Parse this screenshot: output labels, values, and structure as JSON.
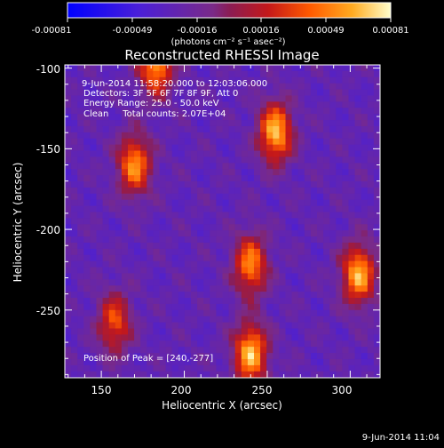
{
  "colorbar": {
    "tick_labels": [
      "-0.00081",
      "-0.00049",
      "-0.00016",
      "0.00016",
      "0.00049",
      "0.00081"
    ],
    "units_label": "(photons cm⁻² s⁻¹ asec⁻²)",
    "range": [
      -0.00081,
      0.00081
    ]
  },
  "chart_data": {
    "type": "heatmap",
    "title": "Reconstructed RHESSI Image",
    "xlabel": "Heliocentric X (arcsec)",
    "ylabel": "Heliocentric Y (arcsec)",
    "xlim": [
      128,
      318
    ],
    "ylim": [
      -292,
      -98
    ],
    "x_ticks": [
      150,
      200,
      250,
      300
    ],
    "y_ticks": [
      -100,
      -150,
      -200,
      -250
    ],
    "x_tick_labels": [
      "150",
      "200",
      "250",
      "300"
    ],
    "y_tick_labels": [
      "-100",
      "-150",
      "-200",
      "-250"
    ],
    "annotations": [
      "9-Jun-2014 11:58:20.000 to 12:03:06.000",
      "Detectors: 3F 5F 6F 7F 8F 9F, Att 0",
      "Energy Range: 25.0 - 50.0 keV",
      "Clean     Total counts: 2.07E+04"
    ],
    "peak_label": "Position of Peak = [240,-277]",
    "peak": [
      240,
      -277
    ],
    "sources": [
      {
        "x": 183,
        "y": -98,
        "peak": 0.00075
      },
      {
        "x": 255,
        "y": -140,
        "peak": 0.00081
      },
      {
        "x": 170,
        "y": -160,
        "peak": 0.0007
      },
      {
        "x": 240,
        "y": -222,
        "peak": 0.00068
      },
      {
        "x": 305,
        "y": -228,
        "peak": 0.00078
      },
      {
        "x": 158,
        "y": -258,
        "peak": 0.00055
      },
      {
        "x": 240,
        "y": -277,
        "peak": 0.00081
      }
    ]
  },
  "footer": {
    "timestamp": "9-Jun-2014 11:04"
  },
  "colors": {
    "background": "#000000",
    "text": "#ffffff"
  }
}
